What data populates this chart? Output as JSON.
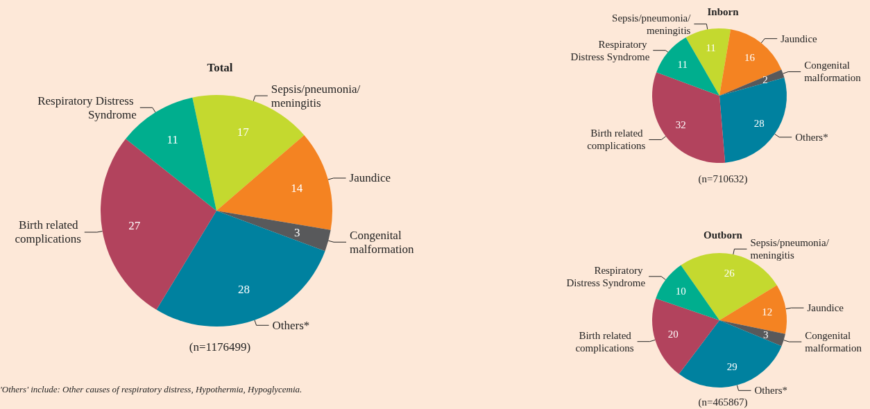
{
  "chart_data": [
    {
      "type": "pie",
      "title": "Total",
      "subtitle": "(n=1176499)",
      "categories": [
        "Sepsis/pneumonia/meningitis",
        "Jaundice",
        "Congenital malformation",
        "Others*",
        "Birth related complications",
        "Respiratory Distress Syndrome"
      ],
      "values": [
        17,
        14,
        3,
        28,
        27,
        11
      ],
      "colors": [
        "#c4d92f",
        "#f48322",
        "#58595b",
        "#00819f",
        "#b2435d",
        "#00ae8e"
      ],
      "data_labels": true,
      "legend": false,
      "annotations": [
        "'Others' include: Other causes of respiratory distress, Hypothermia, Hypoglycemia."
      ]
    },
    {
      "type": "pie",
      "title": "Inborn",
      "subtitle": "(n=710632)",
      "categories": [
        "Sepsis/pneumonia/meningitis",
        "Jaundice",
        "Congenital malformation",
        "Others*",
        "Birth related complications",
        "Respiratory Distress Syndrome"
      ],
      "values": [
        11,
        16,
        2,
        28,
        32,
        11
      ],
      "colors": [
        "#c4d92f",
        "#f48322",
        "#58595b",
        "#00819f",
        "#b2435d",
        "#00ae8e"
      ],
      "data_labels": true,
      "legend": false
    },
    {
      "type": "pie",
      "title": "Outborn",
      "subtitle": "(n=465867)",
      "categories": [
        "Sepsis/pneumonia/meningitis",
        "Jaundice",
        "Congenital malformation",
        "Others*",
        "Birth related complications",
        "Respiratory Distress Syndrome"
      ],
      "values": [
        26,
        12,
        3,
        29,
        20,
        10
      ],
      "colors": [
        "#c4d92f",
        "#f48322",
        "#58595b",
        "#00819f",
        "#b2435d",
        "#00ae8e"
      ],
      "data_labels": true,
      "legend": false
    }
  ]
}
